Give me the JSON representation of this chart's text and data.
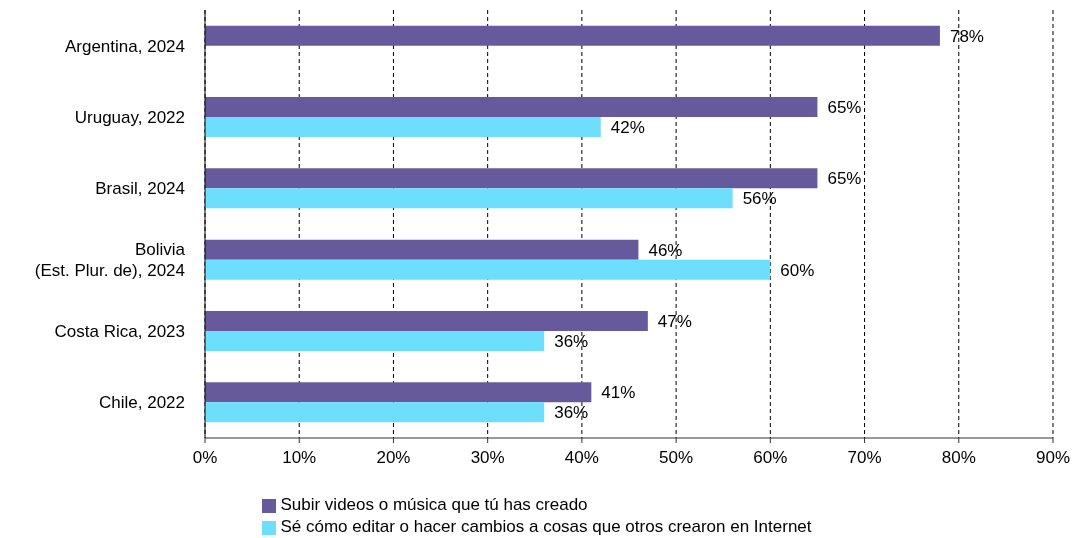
{
  "chart_data": {
    "type": "bar",
    "orientation": "horizontal",
    "categories": [
      "Argentina, 2024",
      "Uruguay, 2022",
      "Brasil, 2024",
      "Bolivia\n(Est. Plur. de), 2024",
      "Costa Rica, 2023",
      "Chile, 2022"
    ],
    "series": [
      {
        "name": "Subir videos o música que tú has creado",
        "color": "#675a9c",
        "values": [
          78,
          65,
          65,
          46,
          47,
          41
        ],
        "value_labels": [
          "78%",
          "65%",
          "65%",
          "46%",
          "47%",
          "41%"
        ]
      },
      {
        "name": "Sé cómo editar o hacer cambios a cosas que otros crearon en Internet",
        "color": "#6ddffd",
        "values": [
          null,
          42,
          56,
          60,
          36,
          36
        ],
        "value_labels": [
          null,
          "42%",
          "56%",
          "60%",
          "36%",
          "36%"
        ]
      }
    ],
    "xlim": [
      0,
      90
    ],
    "xticks": [
      {
        "value": 0,
        "label": "0%"
      },
      {
        "value": 10,
        "label": "10%"
      },
      {
        "value": 20,
        "label": "20%"
      },
      {
        "value": 30,
        "label": "30%"
      },
      {
        "value": 40,
        "label": "40%"
      },
      {
        "value": 50,
        "label": "50%"
      },
      {
        "value": 60,
        "label": "60%"
      },
      {
        "value": 70,
        "label": "70%"
      },
      {
        "value": 80,
        "label": "80%"
      },
      {
        "value": 90,
        "label": "90%"
      }
    ],
    "grid": "x",
    "legend": "bottom"
  }
}
